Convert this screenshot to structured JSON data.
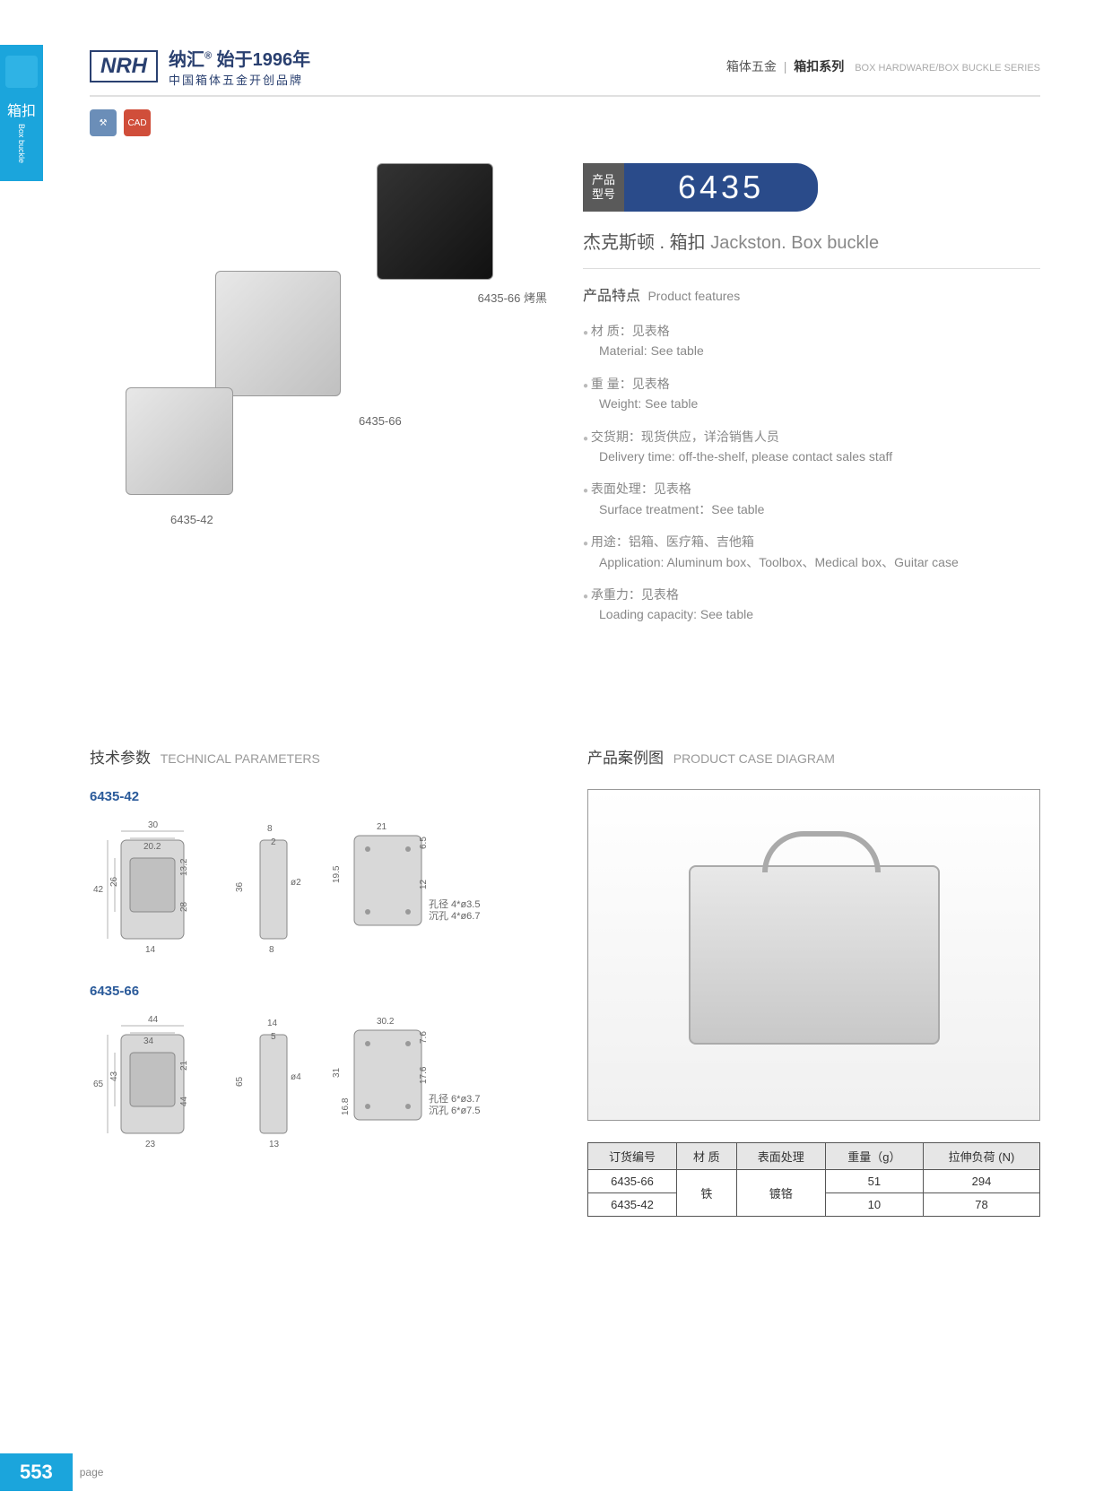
{
  "side_tab": {
    "cn": "箱扣",
    "en": "Box buckle"
  },
  "header": {
    "logo": "NRH",
    "brand_cn": "纳汇",
    "since": "始于1996年",
    "tagline": "中国箱体五金开创品牌",
    "breadcrumb": {
      "cat_cn": "箱体五金",
      "sub_cn": "箱扣系列",
      "en": "BOX HARDWARE/BOX BUCKLE SERIES"
    }
  },
  "badges": {
    "blue_icon": "⚒",
    "red_icon": "CAD"
  },
  "product": {
    "model_label": "产品型号",
    "model_number": "6435",
    "name_cn": "杰克斯顿 . 箱扣",
    "name_en": "Jackston. Box buckle",
    "labels": {
      "l1": "6435-66 烤黑",
      "l2": "6435-66",
      "l3": "6435-42"
    }
  },
  "features": {
    "title_cn": "产品特点",
    "title_en": "Product features",
    "items": [
      {
        "cn": "材 质：见表格",
        "en": "Material: See table"
      },
      {
        "cn": "重 量：见表格",
        "en": "Weight: See table"
      },
      {
        "cn": "交货期：现货供应，详洽销售人员",
        "en": "Delivery time: off-the-shelf, please contact sales staff"
      },
      {
        "cn": "表面处理：见表格",
        "en": "Surface treatment：See table"
      },
      {
        "cn": "用途：铝箱、医疗箱、吉他箱",
        "en": "Application: Aluminum box、Toolbox、Medical box、Guitar case"
      },
      {
        "cn": "承重力：见表格",
        "en": "Loading capacity: See table"
      }
    ]
  },
  "tech": {
    "title_cn": "技术参数",
    "title_en": "TECHNICAL PARAMETERS",
    "groups": [
      {
        "label": "6435-42",
        "dims": {
          "w1": "30",
          "w2": "20.2",
          "h1": "42",
          "h2": "26",
          "h3": "13.2",
          "h4": "28",
          "w3": "14",
          "d1": "8",
          "d2": "2",
          "d3": "36",
          "d4": "ø2",
          "d5": "8",
          "sw": "21",
          "sh1": "19.5",
          "sh2": "6.5",
          "sh3": "12",
          "hole1": "孔径 4*ø3.5",
          "hole2": "沉孔 4*ø6.7"
        }
      },
      {
        "label": "6435-66",
        "dims": {
          "w1": "44",
          "w2": "34",
          "h1": "65",
          "h2": "43",
          "h3": "21",
          "h4": "44",
          "w3": "23",
          "d1": "14",
          "d2": "5",
          "d3": "65",
          "d4": "ø4",
          "d5": "13",
          "sw": "30.2",
          "sh1": "31",
          "sh2": "7.6",
          "sh3": "17.6",
          "sh4": "16.8",
          "hole1": "孔径 6*ø3.7",
          "hole2": "沉孔 6*ø7.5"
        }
      }
    ]
  },
  "case": {
    "title_cn": "产品案例图",
    "title_en": "PRODUCT CASE DIAGRAM"
  },
  "table": {
    "headers": [
      "订货编号",
      "材 质",
      "表面处理",
      "重量（g）",
      "拉伸负荷 (N)"
    ],
    "rows": [
      [
        "6435-66",
        "铁",
        "镀铬",
        "51",
        "294"
      ],
      [
        "6435-42",
        "铁",
        "镀铬",
        "10",
        "78"
      ]
    ],
    "material_rowspan": "铁",
    "treatment_rowspan": "镀铬"
  },
  "page_number": "553",
  "page_label": "page",
  "colors": {
    "brand_blue": "#2a4b8a",
    "accent_blue": "#1ba5dc",
    "dark_blue": "#2a4070",
    "text_gray": "#666",
    "light_gray": "#888"
  }
}
